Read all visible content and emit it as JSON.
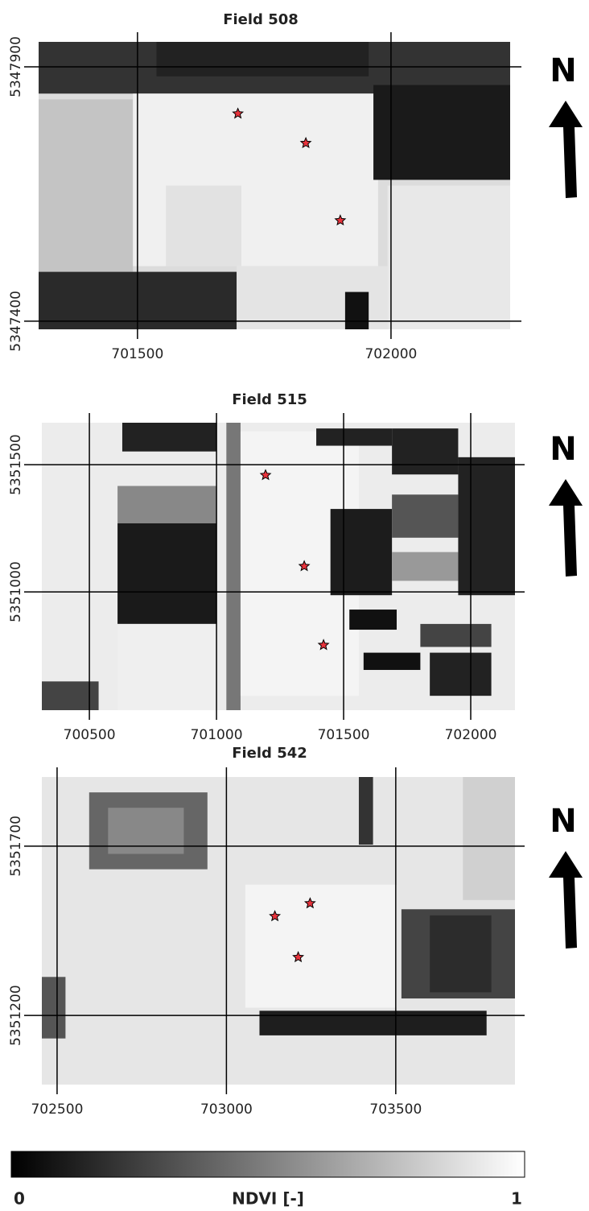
{
  "panels": [
    {
      "title": "Field  508",
      "north": "N",
      "xlim": [
        701305,
        702235
      ],
      "ylim": [
        5347384,
        5347949
      ],
      "xticks": [
        701500,
        702000
      ],
      "yticks": [
        5347400,
        5347900
      ],
      "points": {
        "x": [
          701698,
          701832,
          701900
        ],
        "y": [
          5347808,
          5347750,
          5347598
        ]
      }
    },
    {
      "title": "Field  515",
      "north": "N",
      "xlim": [
        700313,
        702174
      ],
      "ylim": [
        5350535,
        5351665
      ],
      "xticks": [
        700500,
        701000,
        701500,
        702000
      ],
      "yticks": [
        5351000,
        5351500
      ],
      "points": {
        "x": [
          701193,
          701345,
          701421
        ],
        "y": [
          5351459,
          5351101,
          5350791
        ]
      }
    },
    {
      "title": "Field  542",
      "north": "N",
      "xlim": [
        702455,
        703852
      ],
      "ylim": [
        5350996,
        5351904
      ],
      "xticks": [
        702500,
        703000,
        703500
      ],
      "yticks": [
        5351200,
        5351700
      ],
      "points": {
        "x": [
          703143,
          703247,
          703212
        ],
        "y": [
          5351493,
          5351531,
          5351372
        ]
      }
    }
  ],
  "colorbar": {
    "label": "NDVI [-]",
    "clim": [
      0,
      1
    ],
    "cticks": [
      0,
      1
    ]
  }
}
